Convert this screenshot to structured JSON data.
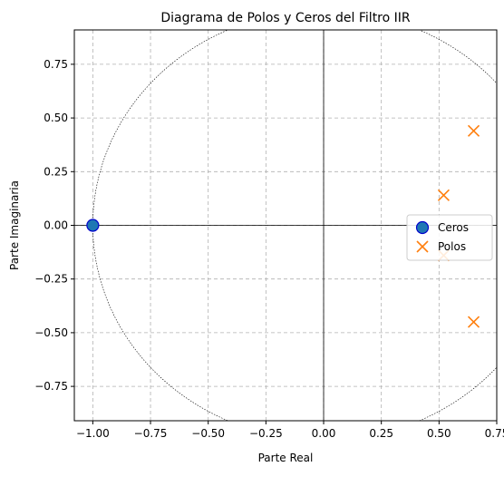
{
  "chart_data": {
    "type": "scatter",
    "title": "Diagrama de Polos y Ceros del Filtro IIR",
    "xlabel": "Parte Real",
    "ylabel": "Parte Imaginaria",
    "xlim": [
      -1.08,
      0.75
    ],
    "ylim": [
      -0.91,
      0.91
    ],
    "xticks": [
      -1.0,
      -0.75,
      -0.5,
      -0.25,
      0.0,
      0.25,
      0.5,
      0.75
    ],
    "xtick_labels": [
      "−1.00",
      "−0.75",
      "−0.50",
      "−0.25",
      "0.00",
      "0.25",
      "0.50",
      "0.75"
    ],
    "yticks": [
      -0.75,
      -0.5,
      -0.25,
      0.0,
      0.25,
      0.5,
      0.75
    ],
    "ytick_labels": [
      "−0.75",
      "−0.50",
      "−0.25",
      "0.00",
      "0.25",
      "0.50",
      "0.75"
    ],
    "grid": true,
    "grid_style": "dashed",
    "legend_position": "right",
    "unit_circle": {
      "radius": 1.0,
      "style": "dotted",
      "color": "#000000"
    },
    "series": [
      {
        "name": "Ceros",
        "marker": "circle",
        "color": "#1f77b4",
        "edge_color": "#0000cc",
        "points": [
          {
            "x": -1.0,
            "y": 0.0
          }
        ]
      },
      {
        "name": "Polos",
        "marker": "x",
        "color": "#ff7f0e",
        "points": [
          {
            "x": 0.65,
            "y": 0.44
          },
          {
            "x": 0.52,
            "y": 0.14
          },
          {
            "x": 0.52,
            "y": -0.14
          },
          {
            "x": 0.65,
            "y": -0.45
          }
        ]
      }
    ]
  }
}
